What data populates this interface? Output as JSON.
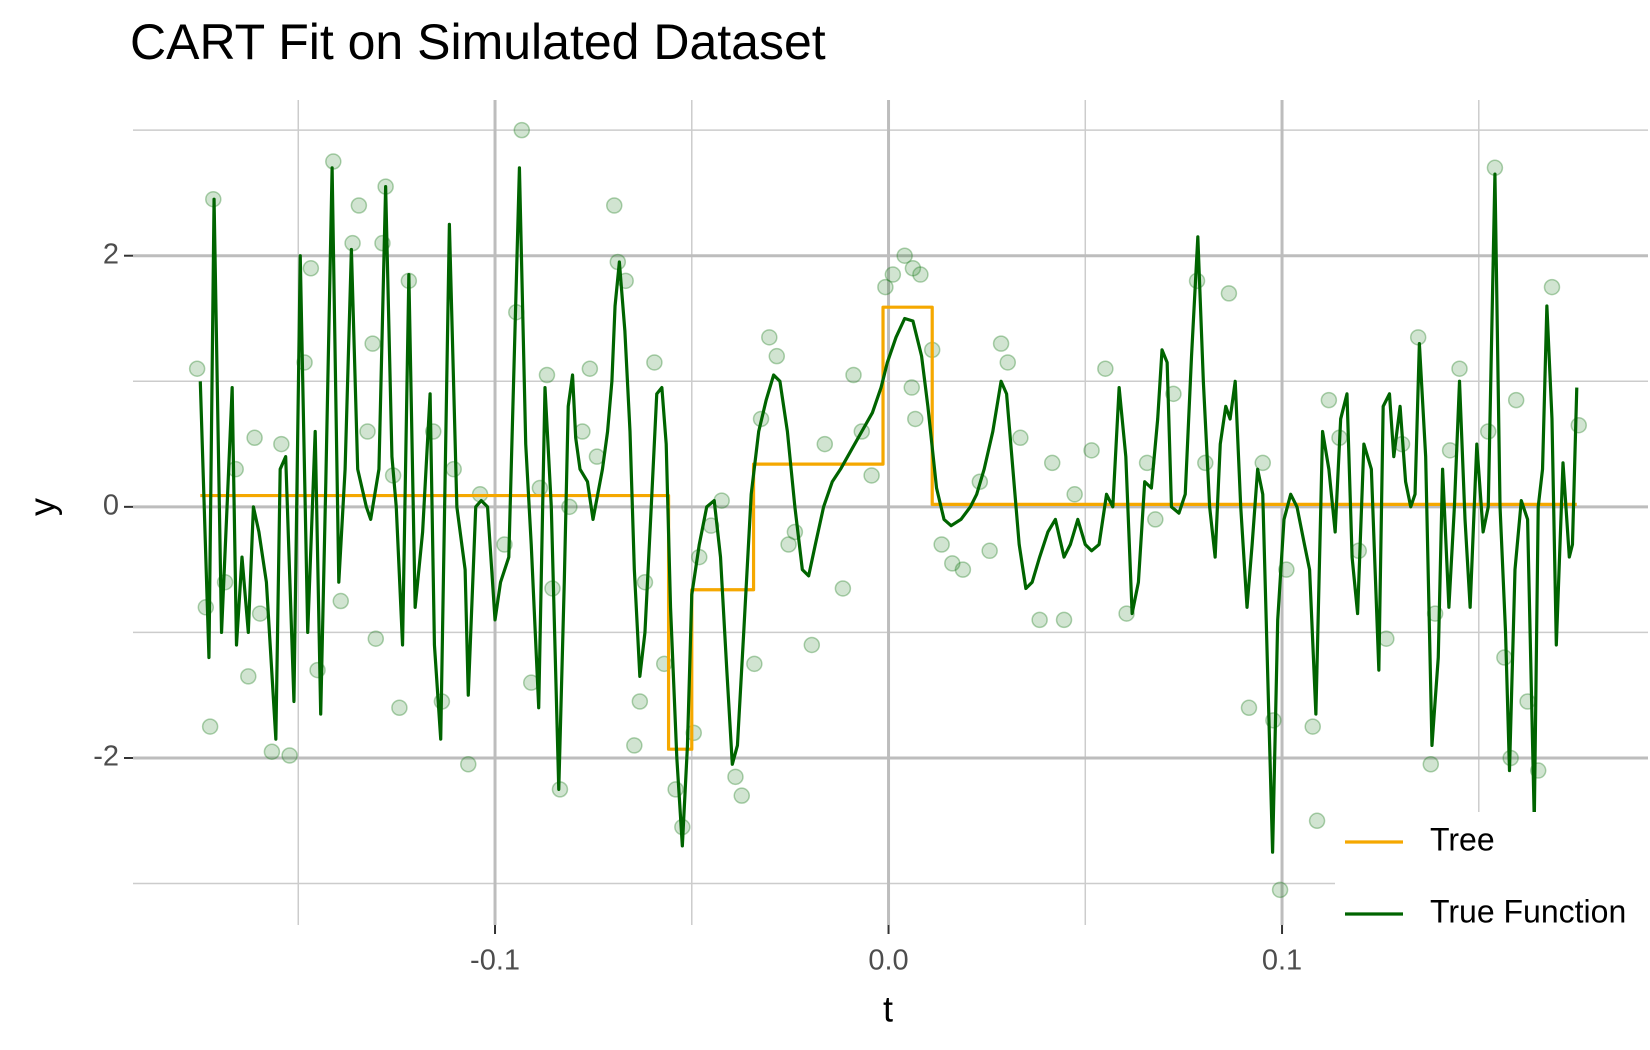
{
  "chart_data": {
    "type": "line",
    "title": "CART Fit on Simulated Dataset",
    "x_label": "t",
    "y_label": "y",
    "xlim": [
      -0.192,
      0.193
    ],
    "ylim": [
      -3.33,
      3.24
    ],
    "xticks": [
      -0.1,
      {
        "value": 0,
        "label": "0.0"
      },
      0.1
    ],
    "yticks": [
      -2,
      0,
      2
    ],
    "minor_xticks": [
      -0.15,
      -0.05,
      0.05,
      0.15
    ],
    "minor_yticks": [
      -3,
      -1,
      1,
      3
    ],
    "grid": true,
    "legend": "bottom-right",
    "points": {
      "color": "#1a7a1a",
      "x": [
        -0.1757,
        -0.1735,
        -0.1724,
        -0.1716,
        -0.1686,
        -0.1659,
        -0.1627,
        -0.1611,
        -0.1597,
        -0.1567,
        -0.1543,
        -0.1522,
        -0.1484,
        -0.1468,
        -0.1451,
        -0.1411,
        -0.1392,
        -0.1362,
        -0.1346,
        -0.1324,
        -0.1311,
        -0.1303,
        -0.1286,
        -0.1278,
        -0.1259,
        -0.1243,
        -0.1219,
        -0.1157,
        -0.1135,
        -0.1105,
        -0.1068,
        -0.1038,
        -0.0976,
        -0.0946,
        -0.0932,
        -0.0908,
        -0.0886,
        -0.0868,
        -0.0854,
        -0.0835,
        -0.0811,
        -0.0778,
        -0.0759,
        -0.0741,
        -0.0697,
        -0.0688,
        -0.0668,
        -0.0646,
        -0.0632,
        -0.0619,
        -0.0595,
        -0.057,
        -0.0541,
        -0.0524,
        -0.0495,
        -0.0481,
        -0.0451,
        -0.0424,
        -0.0389,
        -0.0373,
        -0.0341,
        -0.0324,
        -0.0303,
        -0.0284,
        -0.0254,
        -0.0238,
        -0.0195,
        -0.0162,
        -0.0116,
        -0.0089,
        -0.0068,
        -0.0043,
        -0.0008,
        0.0011,
        0.0041,
        0.0062,
        0.0081,
        0.0059,
        0.0068,
        0.0111,
        0.0135,
        0.0162,
        0.0189,
        0.0232,
        0.0257,
        0.0286,
        0.0303,
        0.0335,
        0.0384,
        0.0416,
        0.0446,
        0.0473,
        0.0516,
        0.0551,
        0.0605,
        0.0657,
        0.0678,
        0.0724,
        0.0784,
        0.0805,
        0.0865,
        0.0916,
        0.0951,
        0.0978,
        0.0995,
        0.1011,
        0.1078,
        0.1089,
        0.1119,
        0.1146,
        0.1195,
        0.1265,
        0.1305,
        0.1346,
        0.1378,
        0.1389,
        0.1427,
        0.1451,
        0.1524,
        0.1541,
        0.1565,
        0.1581,
        0.1595,
        0.1624,
        0.1651,
        0.1686,
        0.1754
      ],
      "y": [
        1.1,
        -0.8,
        -1.75,
        2.45,
        -0.6,
        0.3,
        -1.35,
        0.55,
        -0.85,
        -1.95,
        0.5,
        -1.98,
        1.15,
        1.9,
        -1.3,
        2.75,
        -0.75,
        2.1,
        2.4,
        0.6,
        1.3,
        -1.05,
        2.1,
        2.55,
        0.25,
        -1.6,
        1.8,
        0.6,
        -1.55,
        0.3,
        -2.05,
        0.1,
        -0.3,
        1.55,
        3.0,
        -1.4,
        0.15,
        1.05,
        -0.65,
        -2.25,
        0.0,
        0.6,
        1.1,
        0.4,
        2.4,
        1.95,
        1.8,
        -1.9,
        -1.55,
        -0.6,
        1.15,
        -1.25,
        -2.25,
        -2.55,
        -1.8,
        -0.4,
        -0.15,
        0.05,
        -2.15,
        -2.3,
        -1.25,
        0.7,
        1.35,
        1.2,
        -0.3,
        -0.2,
        -1.1,
        0.5,
        -0.65,
        1.05,
        0.6,
        0.25,
        1.75,
        1.85,
        2.0,
        1.9,
        1.85,
        0.95,
        0.7,
        1.25,
        -0.3,
        -0.45,
        -0.5,
        0.2,
        -0.35,
        1.3,
        1.15,
        0.55,
        -0.9,
        0.35,
        -0.9,
        0.1,
        0.45,
        1.1,
        -0.85,
        0.35,
        -0.1,
        0.9,
        1.8,
        0.35,
        1.7,
        -1.6,
        0.35,
        -1.7,
        -3.05,
        -0.5,
        -1.75,
        -2.5,
        0.85,
        0.55,
        -0.35,
        -1.05,
        0.5,
        1.35,
        -2.05,
        -0.85,
        0.45,
        1.1,
        0.6,
        2.7,
        -1.2,
        -2.0,
        0.85,
        -1.55,
        -2.1,
        1.75,
        0.65
      ]
    },
    "series": [
      {
        "name": "Tree",
        "color": "#f5a800",
        "x": [
          -0.1749,
          -0.0559,
          -0.0559,
          -0.05,
          -0.05,
          -0.0343,
          -0.0343,
          -0.0014,
          -0.0014,
          0.0111,
          0.0111,
          0.1749
        ],
        "values": [
          0.09,
          0.09,
          -1.93,
          -1.93,
          -0.66,
          -0.66,
          0.34,
          0.34,
          1.59,
          1.59,
          0.02,
          0.02
        ]
      },
      {
        "name": "True Function",
        "color": "#006400",
        "x": [
          -0.1749,
          -0.1727,
          -0.1714,
          -0.1695,
          -0.1681,
          -0.1668,
          -0.1657,
          -0.1643,
          -0.1627,
          -0.1614,
          -0.16,
          -0.1581,
          -0.1557,
          -0.1546,
          -0.1532,
          -0.1511,
          -0.1495,
          -0.1476,
          -0.1457,
          -0.1443,
          -0.143,
          -0.1414,
          -0.1397,
          -0.1381,
          -0.1365,
          -0.1349,
          -0.1327,
          -0.1316,
          -0.1295,
          -0.1278,
          -0.1262,
          -0.1251,
          -0.1235,
          -0.1219,
          -0.1203,
          -0.1184,
          -0.1165,
          -0.1154,
          -0.1138,
          -0.1116,
          -0.1097,
          -0.1076,
          -0.1068,
          -0.1049,
          -0.1035,
          -0.1019,
          -0.1,
          -0.0986,
          -0.0965,
          -0.0938,
          -0.0922,
          -0.0908,
          -0.0889,
          -0.0873,
          -0.0857,
          -0.0838,
          -0.0824,
          -0.0814,
          -0.0803,
          -0.0795,
          -0.0784,
          -0.0765,
          -0.0751,
          -0.0727,
          -0.0714,
          -0.0703,
          -0.0695,
          -0.0684,
          -0.067,
          -0.0657,
          -0.0646,
          -0.0632,
          -0.0619,
          -0.0603,
          -0.0589,
          -0.0576,
          -0.0565,
          -0.0554,
          -0.0538,
          -0.0524,
          -0.0511,
          -0.05,
          -0.0481,
          -0.0462,
          -0.0443,
          -0.0427,
          -0.0411,
          -0.0397,
          -0.0384,
          -0.0368,
          -0.0349,
          -0.033,
          -0.0311,
          -0.0292,
          -0.0276,
          -0.0257,
          -0.0238,
          -0.0219,
          -0.0203,
          -0.0186,
          -0.0165,
          -0.0143,
          -0.0122,
          -0.0095,
          -0.0068,
          -0.0041,
          -0.0019,
          -0.0003,
          0.0019,
          0.0041,
          0.0062,
          0.0084,
          0.01,
          0.0122,
          0.0141,
          0.0159,
          0.0184,
          0.0208,
          0.0224,
          0.0243,
          0.0265,
          0.0286,
          0.03,
          0.0316,
          0.0332,
          0.0349,
          0.0365,
          0.0384,
          0.0405,
          0.0424,
          0.0446,
          0.0462,
          0.0481,
          0.05,
          0.0516,
          0.0535,
          0.0554,
          0.057,
          0.0586,
          0.0603,
          0.0619,
          0.0635,
          0.0651,
          0.0668,
          0.0684,
          0.0695,
          0.0708,
          0.0719,
          0.0738,
          0.0754,
          0.077,
          0.0786,
          0.08,
          0.0816,
          0.083,
          0.0843,
          0.0857,
          0.0868,
          0.0881,
          0.0895,
          0.0911,
          0.0924,
          0.0938,
          0.0951,
          0.0965,
          0.0976,
          0.0989,
          0.1005,
          0.1022,
          0.1038,
          0.1057,
          0.107,
          0.1086,
          0.1103,
          0.1119,
          0.1135,
          0.1149,
          0.1165,
          0.1178,
          0.1192,
          0.1208,
          0.1227,
          0.1246,
          0.1257,
          0.1273,
          0.1284,
          0.13,
          0.1314,
          0.1327,
          0.1338,
          0.1349,
          0.1365,
          0.1381,
          0.1397,
          0.1408,
          0.1424,
          0.1438,
          0.1451,
          0.1465,
          0.1478,
          0.1495,
          0.1511,
          0.1524,
          0.1541,
          0.1554,
          0.1568,
          0.1578,
          0.1592,
          0.1608,
          0.1624,
          0.1641,
          0.1651,
          0.1662,
          0.1673,
          0.1686,
          0.1697,
          0.1714,
          0.173,
          0.1738,
          0.1749
        ],
        "values": [
          1.0,
          -1.2,
          2.45,
          -1.0,
          0.0,
          0.95,
          -1.1,
          -0.4,
          -1.0,
          0.0,
          -0.2,
          -0.6,
          -1.85,
          0.3,
          0.4,
          -1.55,
          2.0,
          -1.0,
          0.6,
          -1.65,
          0.2,
          2.7,
          -0.6,
          0.3,
          2.05,
          0.3,
          0.0,
          -0.1,
          0.3,
          2.55,
          0.4,
          0.0,
          -1.1,
          1.85,
          -0.8,
          -0.2,
          0.9,
          -1.1,
          -1.85,
          2.25,
          0.0,
          -0.5,
          -1.5,
          0.0,
          0.05,
          0.0,
          -0.9,
          -0.6,
          -0.4,
          2.7,
          0.5,
          -0.3,
          -1.6,
          0.95,
          0.0,
          -2.25,
          -0.6,
          0.8,
          1.05,
          0.55,
          0.3,
          0.2,
          -0.1,
          0.3,
          0.6,
          1.0,
          1.6,
          1.95,
          1.4,
          0.6,
          -0.5,
          -1.35,
          -1.0,
          0.0,
          0.9,
          0.95,
          0.5,
          -0.8,
          -2.0,
          -2.7,
          -1.9,
          -0.7,
          -0.3,
          0.0,
          0.05,
          -0.4,
          -1.3,
          -2.05,
          -1.9,
          -1.0,
          0.1,
          0.6,
          0.85,
          1.05,
          1.0,
          0.6,
          0.0,
          -0.5,
          -0.55,
          -0.3,
          0.0,
          0.2,
          0.3,
          0.45,
          0.6,
          0.75,
          0.95,
          1.15,
          1.35,
          1.5,
          1.48,
          1.2,
          0.8,
          0.15,
          -0.1,
          -0.15,
          -0.1,
          0.0,
          0.1,
          0.3,
          0.6,
          1.0,
          0.9,
          0.3,
          -0.3,
          -0.65,
          -0.6,
          -0.4,
          -0.2,
          -0.1,
          -0.4,
          -0.3,
          -0.1,
          -0.3,
          -0.35,
          -0.3,
          0.1,
          0.0,
          0.95,
          0.4,
          -0.85,
          -0.6,
          0.2,
          0.15,
          0.7,
          1.25,
          1.15,
          0.0,
          -0.05,
          0.1,
          1.2,
          2.15,
          1.0,
          0.0,
          -0.4,
          0.5,
          0.8,
          0.7,
          1.0,
          0.0,
          -0.8,
          -0.3,
          0.3,
          0.1,
          -1.5,
          -2.75,
          -0.9,
          -0.1,
          0.1,
          0.0,
          -0.3,
          -0.5,
          -1.65,
          0.6,
          0.3,
          -0.2,
          0.7,
          0.9,
          -0.4,
          -0.85,
          0.5,
          0.3,
          -1.3,
          0.8,
          0.9,
          0.4,
          0.8,
          0.2,
          0.0,
          0.1,
          1.3,
          0.4,
          -1.9,
          -1.2,
          0.3,
          -0.8,
          0.0,
          1.0,
          -0.1,
          -0.8,
          0.5,
          -0.2,
          0.0,
          2.65,
          0.0,
          -1.0,
          -2.1,
          -0.5,
          0.05,
          -0.1,
          -2.5,
          0.0,
          0.3,
          1.6,
          0.7,
          -1.1,
          0.35,
          -0.4,
          -0.3,
          0.95
        ]
      }
    ]
  }
}
